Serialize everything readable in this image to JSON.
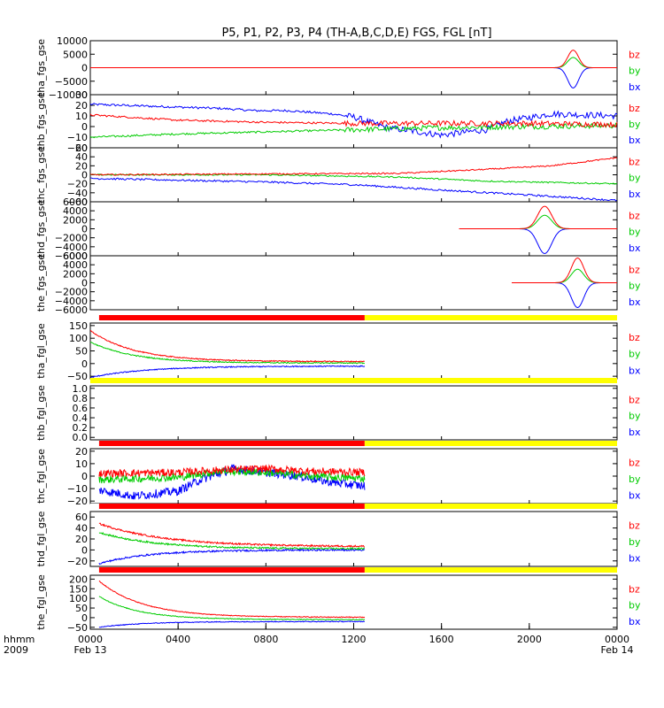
{
  "chart_data": {
    "type": "line",
    "title": "P5, P1, P2, P3, P4 (TH-A,B,C,D,E) FGS, FGL [nT]",
    "colors": {
      "bz": "#ff0000",
      "by": "#00cc00",
      "bx": "#0000ff",
      "bar_red": "#ff0000",
      "bar_yellow": "#ffff00",
      "bar_black": "#000000"
    },
    "x_axis": {
      "header_labels": [
        "hhmm",
        "2009"
      ],
      "range_hours": [
        0,
        24
      ],
      "ticks": [
        {
          "hour": 0,
          "label": "0000",
          "sub": "Feb 13"
        },
        {
          "hour": 4,
          "label": "0400",
          "sub": ""
        },
        {
          "hour": 8,
          "label": "0800",
          "sub": ""
        },
        {
          "hour": 12,
          "label": "1200",
          "sub": ""
        },
        {
          "hour": 16,
          "label": "1600",
          "sub": ""
        },
        {
          "hour": 20,
          "label": "2000",
          "sub": ""
        },
        {
          "hour": 24,
          "label": "0000",
          "sub": "Feb 14"
        }
      ]
    },
    "legend_labels": [
      "bz",
      "by",
      "bx"
    ],
    "panels": [
      {
        "ylabel": "tha_fgs_gse",
        "ylim": [
          -10000,
          10000
        ],
        "ticks": [
          10000,
          5000,
          0,
          -5000,
          -10000
        ],
        "tick_labels": [
          "10000",
          "5000",
          "0",
          "−5000",
          "−10000"
        ],
        "data_hours": [
          0,
          24
        ],
        "events": [
          {
            "center": 22.0,
            "width": 0.35,
            "bz": 6500,
            "by": 3800,
            "bx": -7500
          }
        ]
      },
      {
        "ylabel": "thb_fgs_gse",
        "ylim": [
          -20,
          30
        ],
        "ticks": [
          30,
          20,
          10,
          0,
          -10,
          -20
        ],
        "tick_labels": [
          "30",
          "20",
          "10",
          "0",
          "−10",
          "−20"
        ],
        "data_hours": [
          0,
          24
        ],
        "trend": {
          "bx": [
            [
              0,
              21
            ],
            [
              6,
              17
            ],
            [
              7.5,
              15
            ],
            [
              9,
              15
            ],
            [
              11,
              12
            ],
            [
              12,
              9
            ],
            [
              13.5,
              -1
            ],
            [
              16,
              -8
            ],
            [
              18,
              -3
            ],
            [
              19,
              5
            ],
            [
              21,
              12
            ],
            [
              24,
              10
            ]
          ],
          "bz": [
            [
              0,
              11
            ],
            [
              4,
              6
            ],
            [
              8,
              4
            ],
            [
              12,
              3
            ],
            [
              16,
              3
            ],
            [
              20,
              3
            ],
            [
              24,
              2
            ]
          ],
          "by": [
            [
              0,
              -10
            ],
            [
              4,
              -7
            ],
            [
              8,
              -5
            ],
            [
              12,
              -3
            ],
            [
              16,
              -1
            ],
            [
              20,
              0
            ],
            [
              24,
              1
            ]
          ]
        },
        "noise": {
          "bx": 3.0,
          "bz": 2.5,
          "by": 2.5
        },
        "noise_from_hour": 11.5
      },
      {
        "ylabel": "thc_fgs_gse",
        "ylim": [
          -60,
          60
        ],
        "ticks": [
          60,
          40,
          20,
          0,
          -20,
          -40,
          -60
        ],
        "tick_labels": [
          "60",
          "40",
          "20",
          "0",
          "−20",
          "−40",
          "−60"
        ],
        "data_hours": [
          0,
          24
        ],
        "trend": {
          "bz": [
            [
              0,
              0
            ],
            [
              8,
              2
            ],
            [
              14,
              3
            ],
            [
              18,
              12
            ],
            [
              21,
              20
            ],
            [
              24,
              38
            ]
          ],
          "by": [
            [
              0,
              0
            ],
            [
              8,
              0
            ],
            [
              14,
              -5
            ],
            [
              18,
              -14
            ],
            [
              21,
              -17
            ],
            [
              24,
              -20
            ]
          ],
          "bx": [
            [
              0,
              -8
            ],
            [
              4,
              -12
            ],
            [
              8,
              -16
            ],
            [
              12,
              -22
            ],
            [
              16,
              -34
            ],
            [
              20,
              -45
            ],
            [
              24,
              -57
            ]
          ]
        },
        "noise": {
          "bx": 2.0,
          "bz": 1.5,
          "by": 1.5
        }
      },
      {
        "ylabel": "thd_fgs_gse",
        "ylim": [
          -6000,
          6000
        ],
        "ticks": [
          6000,
          4000,
          2000,
          0,
          -2000,
          -4000,
          -6000
        ],
        "tick_labels": [
          "6000",
          "4000",
          "2000",
          "0",
          "−2000",
          "−4000",
          "−6000"
        ],
        "data_hours": [
          16.8,
          24
        ],
        "events": [
          {
            "center": 20.7,
            "width": 0.45,
            "bz": 5000,
            "by": 3000,
            "bx": -5500
          }
        ]
      },
      {
        "ylabel": "the_fgs_gse",
        "ylim": [
          -6000,
          6000
        ],
        "ticks": [
          6000,
          4000,
          2000,
          0,
          -2000,
          -4000,
          -6000
        ],
        "tick_labels": [
          "6000",
          "4000",
          "2000",
          "0",
          "−2000",
          "−4000",
          "−6000"
        ],
        "data_hours": [
          19.2,
          24
        ],
        "events": [
          {
            "center": 22.2,
            "width": 0.4,
            "bz": 5500,
            "by": 3000,
            "bx": -5500
          }
        ]
      },
      {
        "ylabel": "tha_fgl_gse",
        "ylim": [
          -60,
          160
        ],
        "ticks": [
          150,
          100,
          50,
          0,
          -50
        ],
        "tick_labels": [
          "150",
          "100",
          "50",
          "0",
          "−50"
        ],
        "data_hours": [
          0,
          12.5
        ],
        "decay": {
          "bz": [
            130,
            8,
            2.0
          ],
          "by": [
            85,
            2,
            2.0
          ],
          "bx": [
            -55,
            -10,
            2.5
          ]
        },
        "noise": {
          "bx": 2,
          "bz": 2,
          "by": 2
        },
        "bar": {
          "red_hours": [
            0.4,
            12.5
          ],
          "yellow_hours": [
            12.5,
            24
          ]
        }
      },
      {
        "ylabel": "thb_fgl_gse",
        "ylim": [
          -0.05,
          1.05
        ],
        "ticks": [
          1.0,
          0.8,
          0.6,
          0.4,
          0.2,
          0.0
        ],
        "tick_labels": [
          "1.0",
          "0.8",
          "0.6",
          "0.4",
          "0.2",
          "0.0"
        ],
        "data_hours": [
          0,
          0
        ],
        "bar": {
          "red_hours": [
            0,
            0
          ],
          "yellow_hours": [
            0,
            24
          ]
        }
      },
      {
        "ylabel": "thc_fgl_gse",
        "ylim": [
          -22,
          22
        ],
        "ticks": [
          20,
          10,
          0,
          -10,
          -20
        ],
        "tick_labels": [
          "20",
          "10",
          "0",
          "−10",
          "−20"
        ],
        "data_hours": [
          0.4,
          12.5
        ],
        "trend": {
          "bz": [
            [
              0,
              2
            ],
            [
              4,
              3
            ],
            [
              6,
              5
            ],
            [
              8,
              6
            ],
            [
              10,
              4
            ],
            [
              12.5,
              3
            ]
          ],
          "by": [
            [
              0,
              -3
            ],
            [
              4,
              -1
            ],
            [
              6,
              4
            ],
            [
              8,
              3
            ],
            [
              10,
              0
            ],
            [
              12.5,
              -2
            ]
          ],
          "bx": [
            [
              0,
              -10
            ],
            [
              2,
              -16
            ],
            [
              4,
              -12
            ],
            [
              5,
              -3
            ],
            [
              6.5,
              6
            ],
            [
              8,
              3
            ],
            [
              9.5,
              0
            ],
            [
              11,
              -5
            ],
            [
              12.5,
              -8
            ]
          ]
        },
        "noise": {
          "bx": 3.5,
          "bz": 3.0,
          "by": 3.0
        },
        "bar": {
          "red_hours": [
            0.4,
            12.5
          ],
          "yellow_hours": [
            12.5,
            24
          ]
        }
      },
      {
        "ylabel": "thd_fgl_gse",
        "ylim": [
          -30,
          70
        ],
        "ticks": [
          60,
          40,
          20,
          0,
          -20
        ],
        "tick_labels": [
          "60",
          "40",
          "20",
          "0",
          "−20"
        ],
        "data_hours": [
          0.4,
          12.5
        ],
        "decay": {
          "bz": [
            48,
            6,
            3.0
          ],
          "by": [
            32,
            2,
            2.5
          ],
          "bx": [
            -25,
            0,
            2.2
          ]
        },
        "noise": {
          "bx": 1.5,
          "bz": 1.5,
          "by": 1.5
        },
        "bar": {
          "red_hours": [
            0.4,
            12.5
          ],
          "yellow_hours": [
            12.5,
            24
          ]
        }
      },
      {
        "ylabel": "the_fgl_gse",
        "ylim": [
          -60,
          220
        ],
        "ticks": [
          200,
          150,
          100,
          50,
          0,
          -50
        ],
        "tick_labels": [
          "200",
          "150",
          "100",
          "50",
          "0",
          "−50"
        ],
        "data_hours": [
          0.4,
          12.5
        ],
        "decay": {
          "bz": [
            190,
            2,
            2.0
          ],
          "by": [
            110,
            -10,
            1.8
          ],
          "bx": [
            -50,
            -20,
            2.0
          ]
        },
        "noise": {
          "bx": 2,
          "bz": 2,
          "by": 2
        },
        "bar": {
          "red_hours": [
            0.4,
            12.5
          ],
          "yellow_hours": [
            12.5,
            24
          ]
        }
      }
    ]
  }
}
